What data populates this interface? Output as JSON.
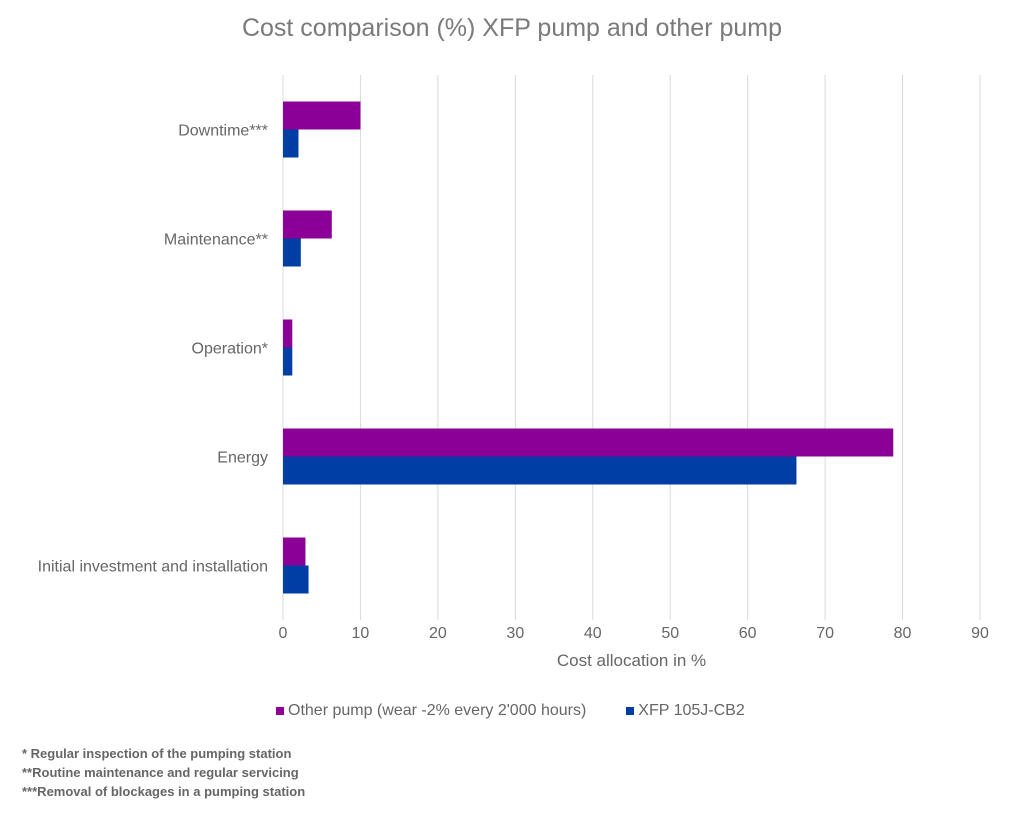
{
  "chart_data": {
    "type": "bar",
    "orientation": "horizontal",
    "title": "Cost comparison (%) XFP pump and other pump",
    "xlabel": "Cost allocation in %",
    "ylabel": "",
    "xlim": [
      0,
      90
    ],
    "xticks": [
      0,
      10,
      20,
      30,
      40,
      50,
      60,
      70,
      80,
      90
    ],
    "grid": "vertical",
    "legend_position": "bottom",
    "categories": [
      "Downtime***",
      "Maintenance**",
      "Operation*",
      "Energy",
      "Initial investment and installation"
    ],
    "series": [
      {
        "name": "Other pump (wear -2% every 2'000 hours)",
        "color": "#8B0096",
        "values": [
          10,
          6.3,
          1.2,
          78.8,
          2.9
        ]
      },
      {
        "name": "XFP 105J-CB2",
        "color": "#003DA5",
        "values": [
          2,
          2.3,
          1.2,
          66.3,
          3.3
        ]
      }
    ]
  },
  "footnotes": [
    "* Regular inspection of the pumping station",
    "**Routine maintenance and regular servicing",
    "***Removal of blockages in a pumping station"
  ]
}
